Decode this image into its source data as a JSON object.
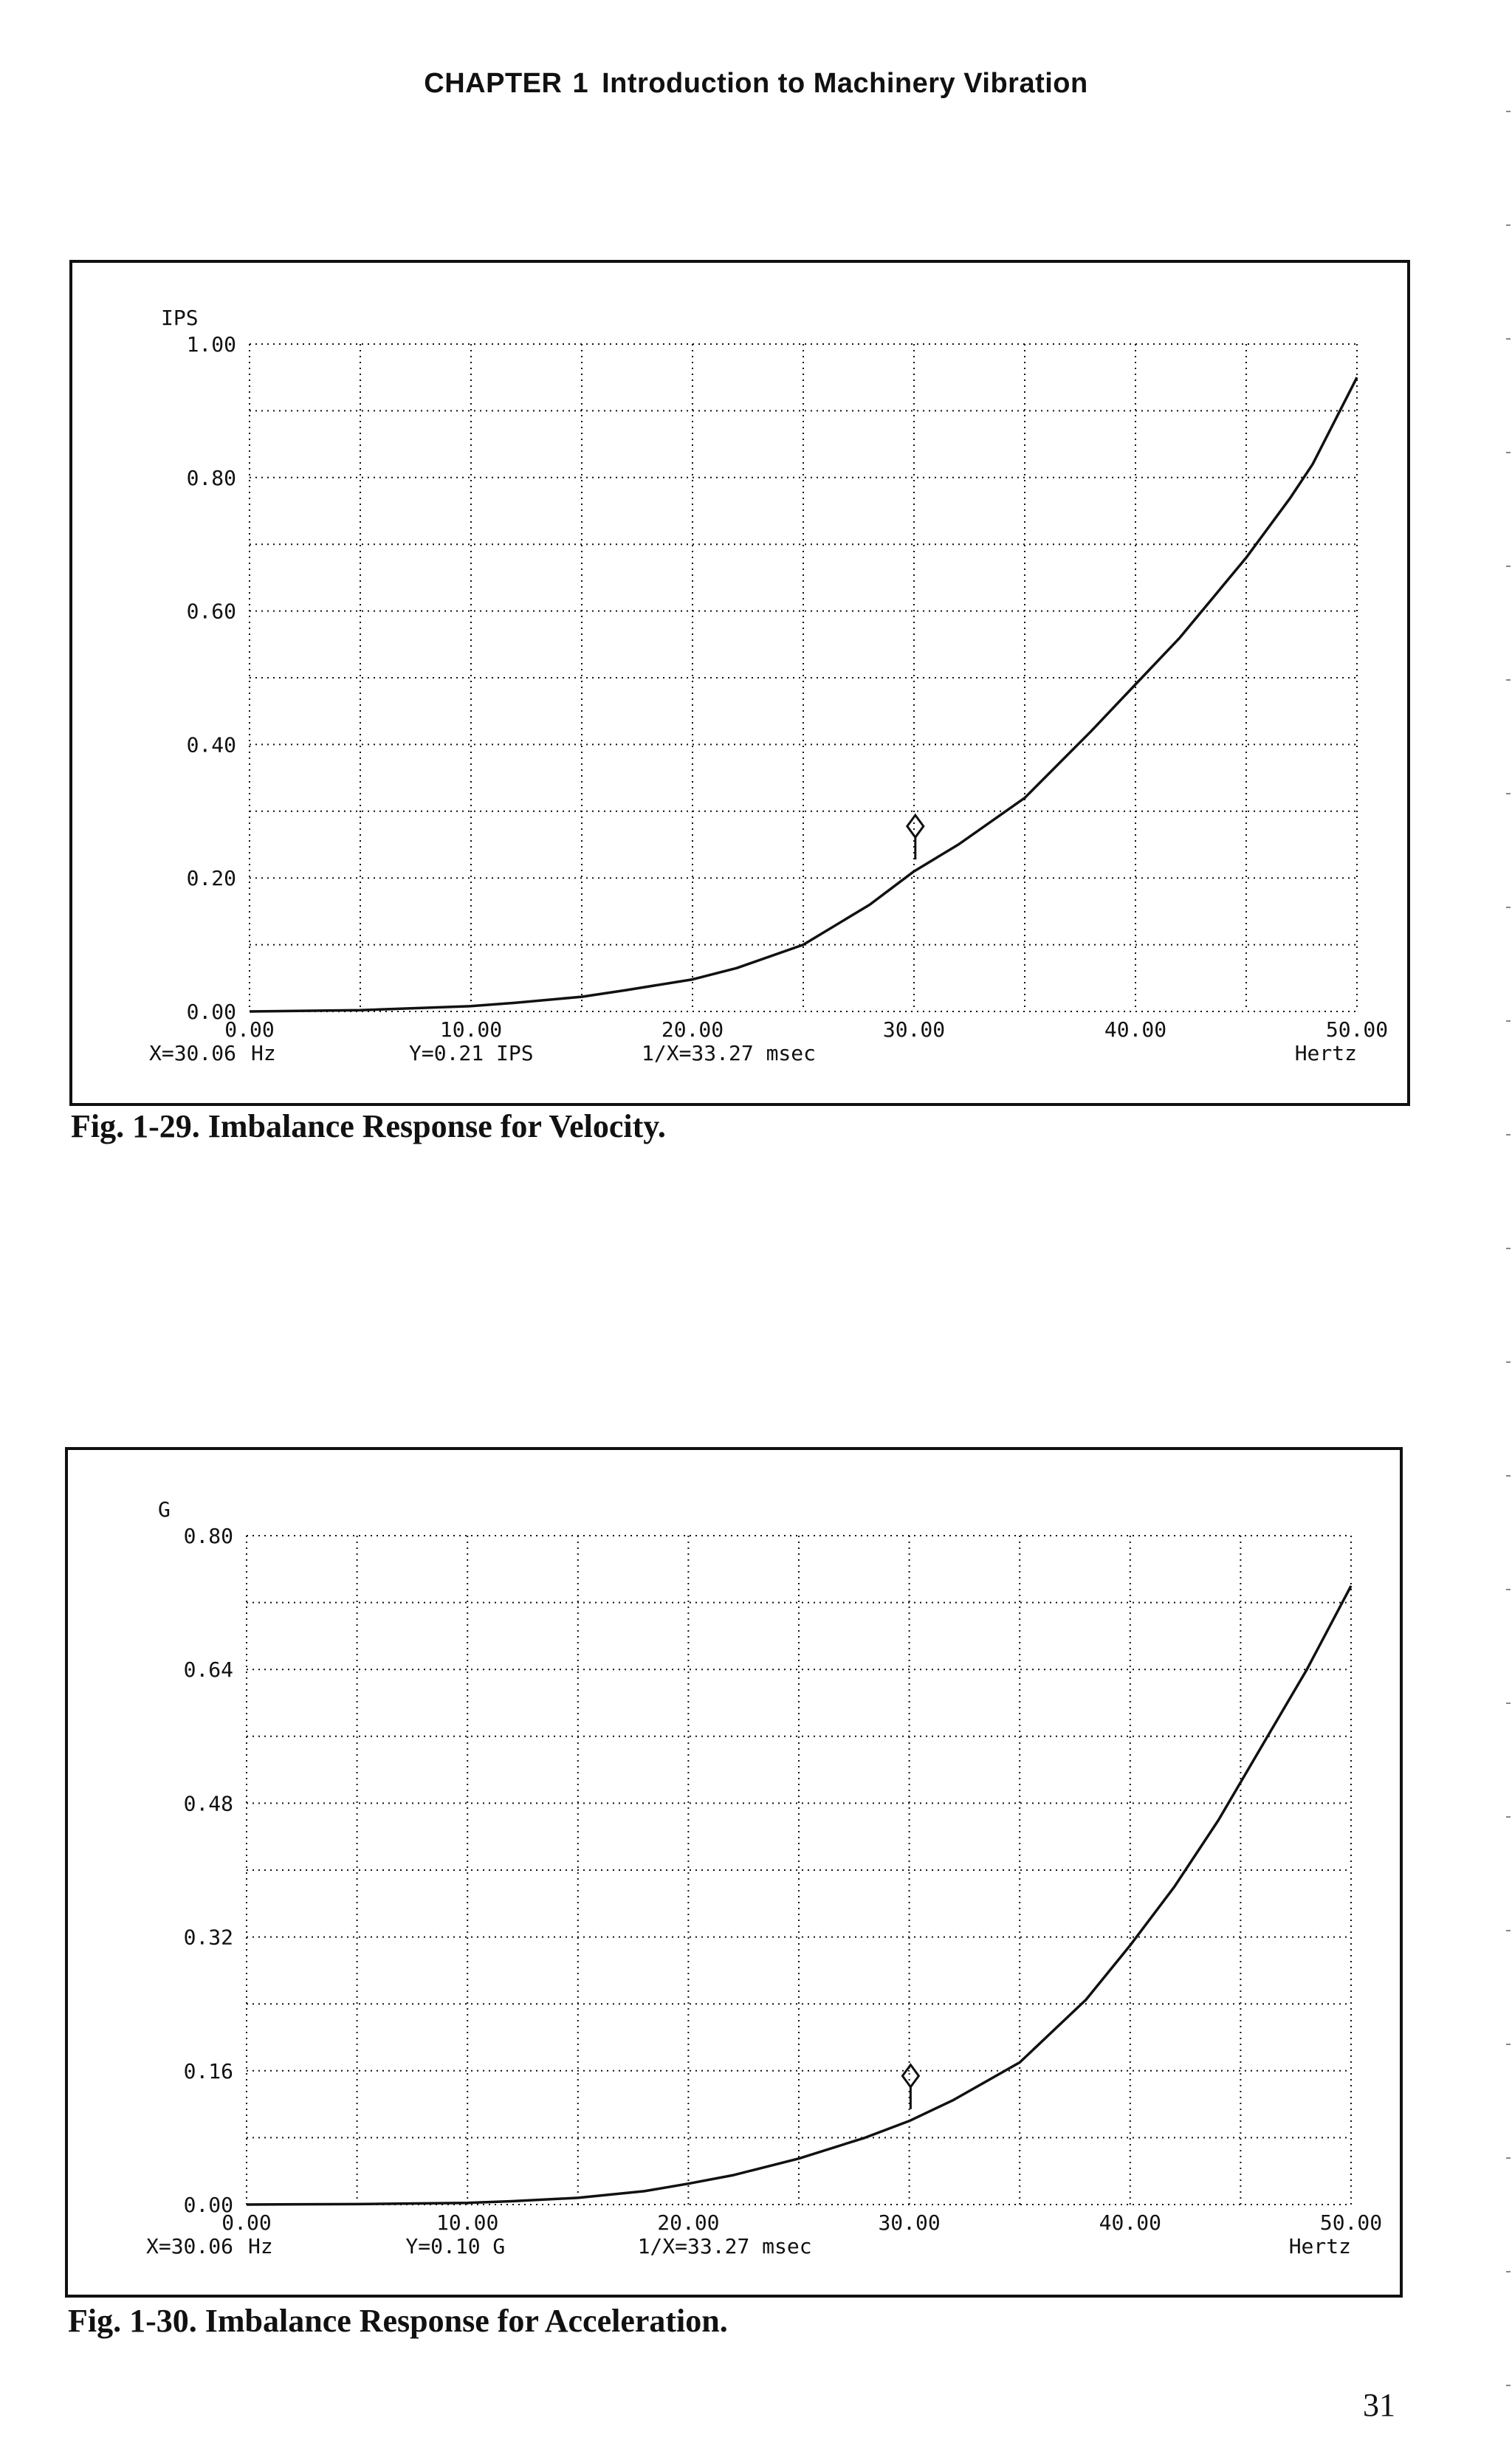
{
  "page": {
    "header": {
      "chapter": "CHAPTER",
      "chapter_number": "1",
      "title": "Introduction to Machinery Vibration"
    },
    "page_number": "31"
  },
  "chart_data": [
    {
      "type": "line",
      "caption": "Fig. 1-29. Imbalance Response for Velocity.",
      "ylabel": "IPS",
      "xlabel": "Hertz",
      "xlim": [
        0,
        50
      ],
      "ylim": [
        0,
        1.0
      ],
      "x_ticks": [
        "0.00",
        "10.00",
        "20.00",
        "30.00",
        "40.00",
        "50.00"
      ],
      "y_ticks": [
        "0.00",
        "0.20",
        "0.40",
        "0.60",
        "0.80",
        "1.00"
      ],
      "x_grid_step": 5,
      "y_grid_step": 0.1,
      "grid": true,
      "grid_style": "dotted",
      "series": [
        {
          "x": [
            0,
            5,
            10,
            12,
            15,
            17,
            20,
            22,
            25,
            28,
            30,
            32,
            35,
            38,
            40,
            42,
            45,
            47,
            48,
            50
          ],
          "y": [
            0.0,
            0.002,
            0.008,
            0.013,
            0.022,
            0.032,
            0.048,
            0.065,
            0.1,
            0.16,
            0.21,
            0.25,
            0.32,
            0.42,
            0.49,
            0.56,
            0.68,
            0.77,
            0.82,
            0.95
          ]
        }
      ],
      "marker": {
        "x": 30.06,
        "y": 0.21,
        "symbol": "diamond-pin"
      },
      "readout": {
        "x": "X=30.06",
        "x_unit": "Hz",
        "y": "Y=0.21 IPS",
        "inverse": "1/X=33.27 msec"
      },
      "color": "#111111"
    },
    {
      "type": "line",
      "caption": "Fig. 1-30. Imbalance Response for Acceleration.",
      "ylabel": "G",
      "xlabel": "Hertz",
      "xlim": [
        0,
        50
      ],
      "ylim": [
        0,
        0.8
      ],
      "x_ticks": [
        "0.00",
        "10.00",
        "20.00",
        "30.00",
        "40.00",
        "50.00"
      ],
      "y_ticks": [
        "0.00",
        "0.16",
        "0.32",
        "0.48",
        "0.64",
        "0.80"
      ],
      "x_grid_step": 5,
      "y_grid_step": 0.08,
      "grid": true,
      "grid_style": "dotted",
      "series": [
        {
          "x": [
            0,
            5,
            10,
            12,
            15,
            18,
            20,
            22,
            25,
            28,
            30,
            32,
            35,
            38,
            40,
            42,
            44,
            46,
            48,
            50
          ],
          "y": [
            0.0,
            0.0005,
            0.002,
            0.004,
            0.008,
            0.016,
            0.025,
            0.035,
            0.055,
            0.08,
            0.1,
            0.125,
            0.17,
            0.245,
            0.31,
            0.38,
            0.46,
            0.55,
            0.64,
            0.74
          ]
        }
      ],
      "marker": {
        "x": 30.06,
        "y": 0.1,
        "symbol": "diamond-pin"
      },
      "readout": {
        "x": "X=30.06",
        "x_unit": "Hz",
        "y": "Y=0.10 G",
        "inverse": "1/X=33.27 msec"
      },
      "color": "#111111"
    }
  ]
}
